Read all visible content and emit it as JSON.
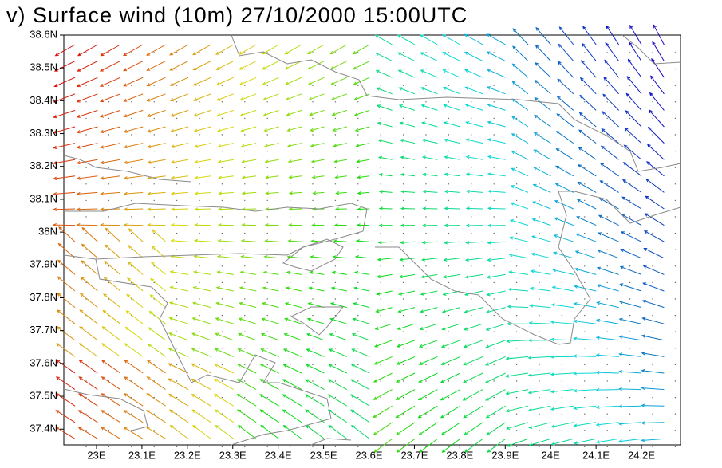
{
  "title": "v) Surface wind (10m) 27/10/2000 15:00UTC",
  "map": {
    "xlim": [
      22.928,
      24.286
    ],
    "ylim": [
      37.352,
      38.6
    ],
    "xticks": [
      {
        "value": 23,
        "label": "23E"
      },
      {
        "value": 23.1,
        "label": "23.1E"
      },
      {
        "value": 23.2,
        "label": "23.2E"
      },
      {
        "value": 23.3,
        "label": "23.3E"
      },
      {
        "value": 23.4,
        "label": "23.4E"
      },
      {
        "value": 23.5,
        "label": "23.5E"
      },
      {
        "value": 23.6,
        "label": "23.6E"
      },
      {
        "value": 23.7,
        "label": "23.7E"
      },
      {
        "value": 23.8,
        "label": "23.8E"
      },
      {
        "value": 23.9,
        "label": "23.9E"
      },
      {
        "value": 24,
        "label": "24E"
      },
      {
        "value": 24.1,
        "label": "24.1E"
      },
      {
        "value": 24.2,
        "label": "24.2E"
      }
    ],
    "yticks": [
      {
        "value": 37.4,
        "label": "37.4N"
      },
      {
        "value": 37.5,
        "label": "37.5N"
      },
      {
        "value": 37.6,
        "label": "37.6N"
      },
      {
        "value": 37.7,
        "label": "37.7N"
      },
      {
        "value": 37.8,
        "label": "37.8N"
      },
      {
        "value": 37.9,
        "label": "37.9N"
      },
      {
        "value": 38,
        "label": "38N"
      },
      {
        "value": 38.1,
        "label": "38.1N"
      },
      {
        "value": 38.2,
        "label": "38.2N"
      },
      {
        "value": 38.3,
        "label": "38.3N"
      },
      {
        "value": 38.4,
        "label": "38.4N"
      },
      {
        "value": 38.5,
        "label": "38.5N"
      },
      {
        "value": 38.6,
        "label": "38.6N"
      }
    ]
  }
}
